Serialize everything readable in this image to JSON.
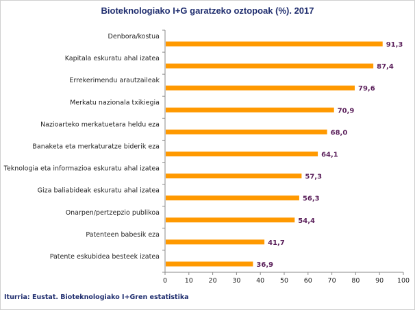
{
  "chart_data": {
    "type": "bar",
    "orientation": "horizontal",
    "title": "Bioteknologiako I+G garatzeko oztopoak (%). 2017",
    "categories": [
      "Denbora/kostua",
      "Kapitala eskuratu ahal izatea",
      "Errekerimendu arautzaileak",
      "Merkatu nazionala txikiegia",
      "Nazioarteko merkatuetara heldu eza",
      "Banaketa eta merkaturatze biderik eza",
      "Teknologia eta informazioa eskuratu ahal izatea",
      "Giza baliabideak eskuratu ahal izatea",
      "Onarpen/pertzepzio publikoa",
      "Patenteen babesik eza",
      "Patente eskubidea besteek izatea"
    ],
    "values": [
      91.3,
      87.4,
      79.6,
      70.9,
      68.0,
      64.1,
      57.3,
      56.3,
      54.4,
      41.7,
      36.9
    ],
    "value_labels": [
      "91,3",
      "87,4",
      "79,6",
      "70,9",
      "68,0",
      "64,1",
      "57,3",
      "56,3",
      "54,4",
      "41,7",
      "36,9"
    ],
    "xlim": [
      0,
      100
    ],
    "xticks": [
      "0",
      "10",
      "20",
      "30",
      "40",
      "50",
      "60",
      "70",
      "80",
      "90",
      "100"
    ],
    "xlabel": "",
    "ylabel": "",
    "grid": false,
    "bar_color": "#ff9900",
    "value_color": "#5a1f5a",
    "title_color": "#1f2d6e"
  },
  "source": "Iturria: Eustat. Bioteknologiako I+Gren estatistika"
}
